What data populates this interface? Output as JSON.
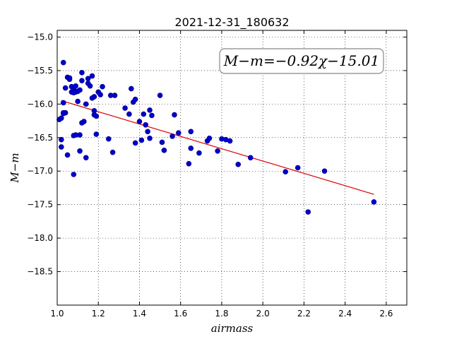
{
  "chart_data": {
    "type": "scatter",
    "title": "2021-12-31_180632",
    "xlabel": "airmass",
    "ylabel": "M−m",
    "xlim": [
      1.0,
      2.7
    ],
    "ylim": [
      -19.0,
      -14.9
    ],
    "y_inverted": true,
    "grid": true,
    "grid_style": "dotted",
    "xticks": [
      1.0,
      1.2,
      1.4,
      1.6,
      1.8,
      2.0,
      2.2,
      2.4,
      2.6
    ],
    "xtick_labels": [
      "1.0",
      "1.2",
      "1.4",
      "1.6",
      "1.8",
      "2.0",
      "2.2",
      "2.4",
      "2.6"
    ],
    "yticks": [
      -15.0,
      -15.5,
      -16.0,
      -16.5,
      -17.0,
      -17.5,
      -18.0,
      -18.5
    ],
    "ytick_labels": [
      "−15.0",
      "−15.5",
      "−16.0",
      "−16.5",
      "−17.0",
      "−17.5",
      "−18.0",
      "−18.5"
    ],
    "annotation": "M−m=−0.92χ−15.01",
    "annotation_placement": "top-right",
    "colors": {
      "points": "#0000cc",
      "points_edge": "#00007f",
      "fit_line": "#dd0000"
    },
    "fit_line": {
      "slope": -0.92,
      "intercept": -15.01,
      "x_range": [
        1.02,
        2.54
      ]
    },
    "series": [
      {
        "x": [
          1.01,
          1.02,
          1.02,
          1.03,
          1.03,
          1.03,
          1.04,
          1.04,
          1.05,
          1.06,
          1.07,
          1.07,
          1.08,
          1.08,
          1.08,
          1.09,
          1.1,
          1.1,
          1.11,
          1.11,
          1.12,
          1.12,
          1.13,
          1.14,
          1.15,
          1.15,
          1.16,
          1.17,
          1.17,
          1.18,
          1.18,
          1.18,
          1.19,
          1.2,
          1.21,
          1.22,
          1.25,
          1.26,
          1.27,
          1.28,
          1.33,
          1.35,
          1.36,
          1.37,
          1.38,
          1.38,
          1.4,
          1.41,
          1.42,
          1.43,
          1.44,
          1.45,
          1.45,
          1.46,
          1.5,
          1.51,
          1.52,
          1.56,
          1.57,
          1.59,
          1.64,
          1.65,
          1.65,
          1.69,
          1.73,
          1.74,
          1.78,
          1.8,
          1.82,
          1.84,
          1.88,
          1.94,
          2.11,
          2.17,
          2.22,
          2.3,
          2.54,
          1.02,
          1.03,
          1.05,
          1.06,
          1.08,
          1.09,
          1.09,
          1.11,
          1.12,
          1.14,
          1.19
        ],
        "y": [
          -16.23,
          -16.21,
          -16.53,
          -15.38,
          -15.98,
          -16.14,
          -15.76,
          -16.13,
          -15.6,
          -15.63,
          -15.74,
          -15.82,
          -15.78,
          -16.47,
          -17.05,
          -15.82,
          -15.81,
          -15.96,
          -16.7,
          -16.46,
          -15.53,
          -15.65,
          -16.26,
          -16.0,
          -15.69,
          -15.62,
          -15.73,
          -15.58,
          -15.91,
          -16.1,
          -16.16,
          -15.89,
          -16.45,
          -15.82,
          -15.86,
          -15.74,
          -16.52,
          -15.87,
          -16.72,
          -15.87,
          -16.06,
          -16.15,
          -15.77,
          -15.97,
          -16.58,
          -15.93,
          -16.26,
          -16.54,
          -16.15,
          -16.31,
          -16.41,
          -16.09,
          -16.51,
          -16.17,
          -15.87,
          -16.57,
          -16.69,
          -16.48,
          -16.16,
          -16.43,
          -16.89,
          -16.66,
          -16.41,
          -16.73,
          -16.55,
          -16.51,
          -16.7,
          -16.52,
          -16.53,
          -16.55,
          -16.9,
          -16.8,
          -17.01,
          -16.95,
          -17.61,
          -17.0,
          -17.46,
          -16.64,
          -16.13,
          -16.76,
          -15.61,
          -15.83,
          -15.73,
          -16.46,
          -15.79,
          -16.28,
          -16.8,
          -16.18
        ]
      }
    ]
  }
}
